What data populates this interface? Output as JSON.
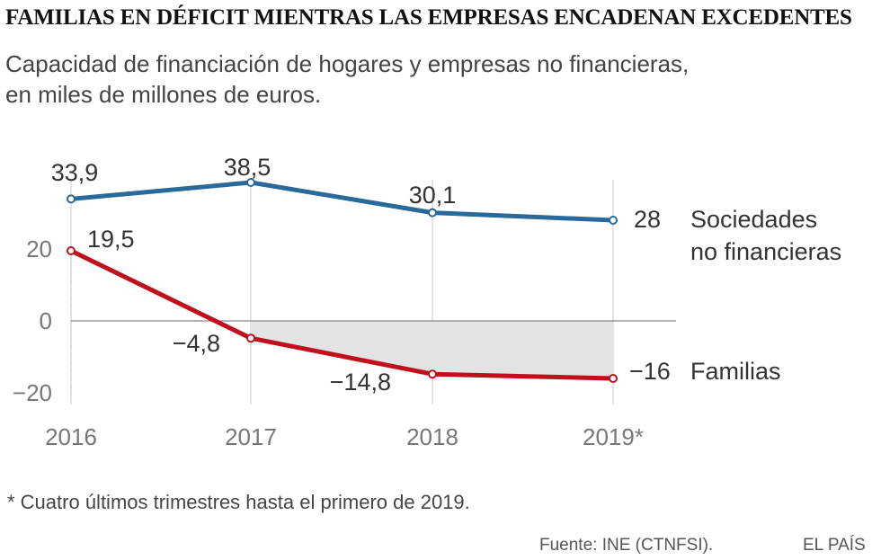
{
  "header": {
    "title": "FAMILIAS EN DÉFICIT MIENTRAS LAS EMPRESAS ENCADENAN EXCEDENTES",
    "subtitle_line1": "Capacidad de financiación de hogares y empresas no financieras,",
    "subtitle_line2": "en miles de millones de euros."
  },
  "chart_data": {
    "type": "line",
    "title": "FAMILIAS EN DÉFICIT MIENTRAS LAS EMPRESAS ENCADENAN EXCEDENTES",
    "subtitle": "Capacidad de financiación de hogares y empresas no financieras, en miles de millones de euros.",
    "categories": [
      "2016",
      "2017",
      "2018",
      "2019*"
    ],
    "ylim": [
      -20,
      40
    ],
    "yticks": [
      20,
      0,
      -20
    ],
    "ytick_labels": [
      "20",
      "0",
      "−20"
    ],
    "series": [
      {
        "name": "Sociedades no financieras",
        "label_lines": [
          "Sociedades",
          "no financieras"
        ],
        "color": "#2a6a9b",
        "values": [
          33.9,
          38.5,
          30.1,
          28
        ],
        "data_labels": [
          "33,9",
          "38,5",
          "30,1",
          "28"
        ]
      },
      {
        "name": "Familias",
        "label_lines": [
          "Familias"
        ],
        "color": "#c0101c",
        "values": [
          19.5,
          -4.8,
          -14.8,
          -16
        ],
        "data_labels": [
          "19,5",
          "−4,8",
          "−14,8",
          "−16"
        ]
      }
    ],
    "shaded_region": "area between zero and Familias line from 2017 to 2019*",
    "shade_color": "#e3e3e3",
    "gridlines": "vertical at each year"
  },
  "footer": {
    "note": "* Cuatro últimos trimestres hasta el primero de 2019.",
    "source": "Fuente:  INE (CTNFSI).",
    "brand": "EL PAÍS"
  }
}
